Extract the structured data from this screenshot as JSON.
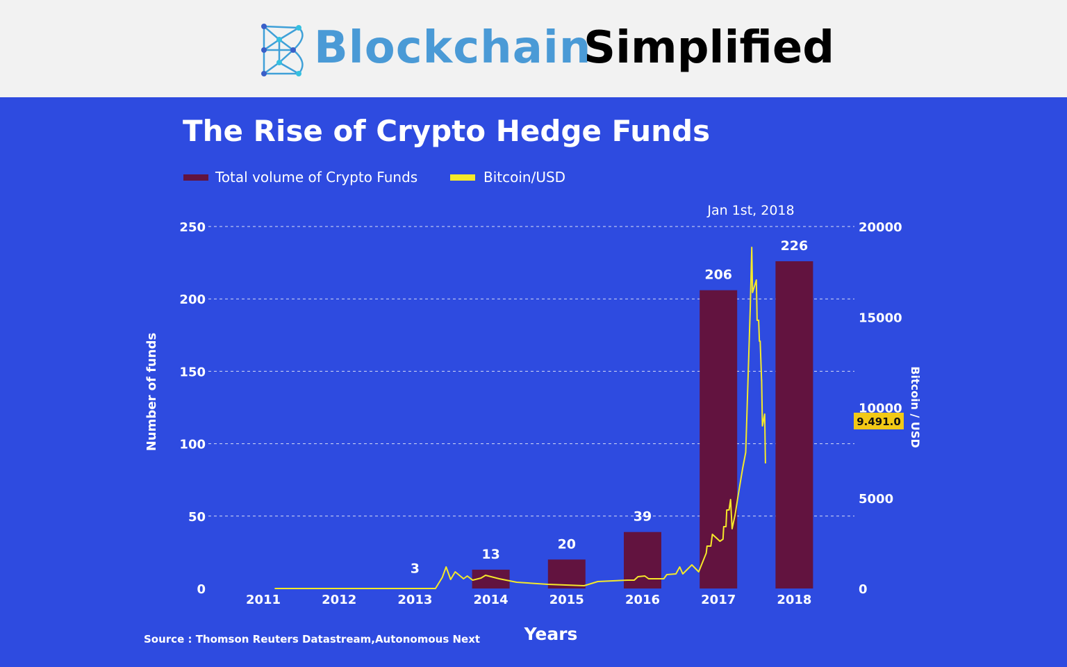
{
  "brand": {
    "word1": "Blockchain",
    "word2": "Simplified"
  },
  "colors": {
    "background": "#2e4be0",
    "header": "#f2f2f2",
    "bar": "#62133f",
    "line": "#f5e92a",
    "highlight": "#f2c916",
    "brand_blue": "#4a9ad6"
  },
  "chart_data": {
    "type": "bar+line",
    "title": "The Rise of Crypto Hedge Funds",
    "xlabel": "Years",
    "ylabel": "Number of funds",
    "y2label": "Bitcoin / USD",
    "ylim": [
      0,
      250
    ],
    "y2lim": [
      0,
      20000
    ],
    "yticks": [
      "0",
      "50",
      "100",
      "150",
      "200",
      "250"
    ],
    "y2ticks": [
      "0",
      "5000",
      "10000",
      "15000",
      "20000"
    ],
    "categories": [
      "2011",
      "2012",
      "2013",
      "2014",
      "2015",
      "2016",
      "2017",
      "2018"
    ],
    "grid": true,
    "legend_placement": "top-left",
    "series": [
      {
        "name": "Total volume of Crypto Funds",
        "type": "bar",
        "values": [
          null,
          null,
          3,
          13,
          20,
          39,
          206,
          226
        ],
        "labels": [
          "",
          "",
          "3",
          "13",
          "20",
          "39",
          "206",
          "226"
        ]
      },
      {
        "name": "Bitcoin/USD",
        "type": "line",
        "axis": "right",
        "x": [
          2011.15,
          2013.27,
          2013.36,
          2013.41,
          2013.47,
          2013.53,
          2013.64,
          2013.69,
          2013.76,
          2013.87,
          2013.93,
          2014.11,
          2014.34,
          2014.75,
          2015.23,
          2015.41,
          2015.8,
          2015.89,
          2015.94,
          2016.03,
          2016.08,
          2016.28,
          2016.32,
          2016.44,
          2016.49,
          2016.53,
          2016.65,
          2016.74,
          2016.84,
          2016.85,
          2016.9,
          2016.92,
          2017.02,
          2017.06,
          2017.07,
          2017.1,
          2017.11,
          2017.14,
          2017.16,
          2017.18,
          2017.22,
          2017.26,
          2017.32,
          2017.36,
          2017.38,
          2017.42,
          2017.44,
          2017.45,
          2017.5,
          2017.51,
          2017.53,
          2017.54,
          2017.55,
          2017.57,
          2017.57,
          2017.58,
          2017.61,
          2017.62
        ],
        "y": [
          0,
          0,
          614,
          1190,
          499,
          921,
          537,
          691,
          461,
          576,
          729,
          537,
          345,
          230,
          154,
          384,
          461,
          461,
          652,
          691,
          537,
          537,
          768,
          806,
          1190,
          806,
          1305,
          921,
          1958,
          2342,
          2342,
          2994,
          2610,
          2726,
          3417,
          3417,
          4338,
          4338,
          4914,
          3302,
          4070,
          5145,
          6642,
          7525,
          10212,
          15586,
          18850,
          16354,
          17045,
          14818,
          14818,
          13667,
          13667,
          11440,
          11555,
          8983,
          9636,
          6911
        ]
      }
    ],
    "annotations": {
      "date": "Jan 1st, 2018",
      "current_value": "9.491.0"
    },
    "source": "Source : Thomson Reuters Datastream,Autonomous Next"
  }
}
